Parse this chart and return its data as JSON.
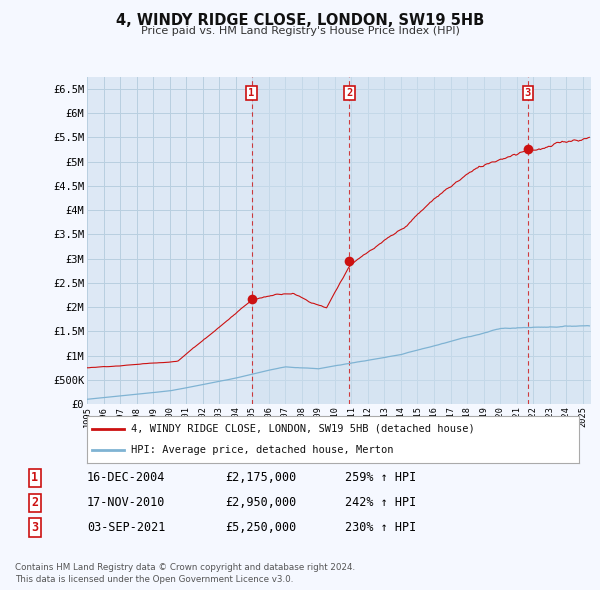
{
  "title": "4, WINDY RIDGE CLOSE, LONDON, SW19 5HB",
  "subtitle": "Price paid vs. HM Land Registry's House Price Index (HPI)",
  "background_color": "#f5f8ff",
  "plot_bg_color": "#dde8f5",
  "grid_color": "#c8d8e8",
  "hpi_color": "#7fb3d3",
  "price_color": "#cc1111",
  "vline_color": "#cc1111",
  "stripe_color": "#cddaeb",
  "ylim": [
    0,
    6750000
  ],
  "yticks": [
    0,
    500000,
    1000000,
    1500000,
    2000000,
    2500000,
    3000000,
    3500000,
    4000000,
    4500000,
    5000000,
    5500000,
    6000000,
    6500000
  ],
  "ytick_labels": [
    "£0",
    "£500K",
    "£1M",
    "£1.5M",
    "£2M",
    "£2.5M",
    "£3M",
    "£3.5M",
    "£4M",
    "£4.5M",
    "£5M",
    "£5.5M",
    "£6M",
    "£6.5M"
  ],
  "sale_dates": [
    2004.96,
    2010.88,
    2021.67
  ],
  "sale_prices": [
    2175000,
    2950000,
    5250000
  ],
  "sale_labels": [
    "1",
    "2",
    "3"
  ],
  "footer_line1": "Contains HM Land Registry data © Crown copyright and database right 2024.",
  "footer_line2": "This data is licensed under the Open Government Licence v3.0.",
  "legend_line1": "4, WINDY RIDGE CLOSE, LONDON, SW19 5HB (detached house)",
  "legend_line2": "HPI: Average price, detached house, Merton",
  "table_rows": [
    [
      "1",
      "16-DEC-2004",
      "£2,175,000",
      "259% ↑ HPI"
    ],
    [
      "2",
      "17-NOV-2010",
      "£2,950,000",
      "242% ↑ HPI"
    ],
    [
      "3",
      "03-SEP-2021",
      "£5,250,000",
      "230% ↑ HPI"
    ]
  ]
}
